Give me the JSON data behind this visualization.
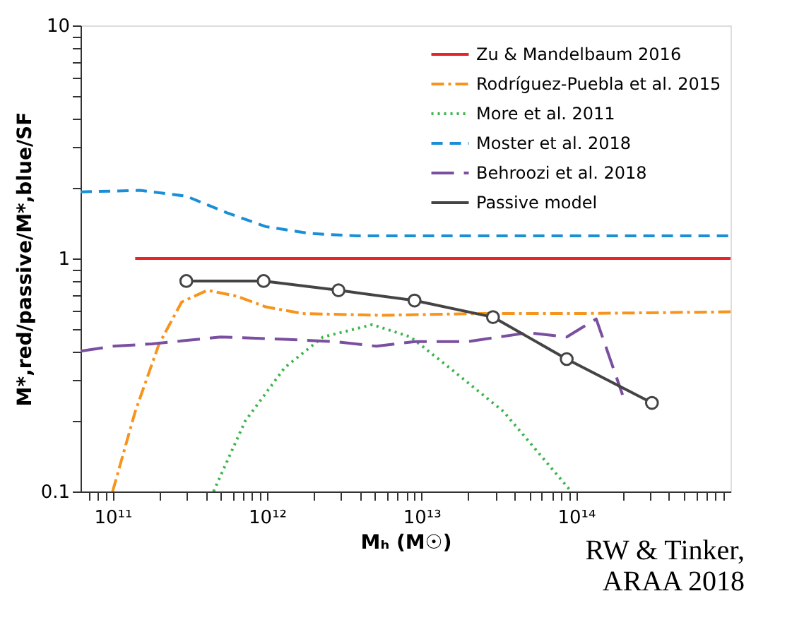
{
  "chart_data": {
    "type": "line",
    "xlabel": "Mₕ (M☉)",
    "ylabel": "M*,red/passive/M*,blue/SF",
    "log": "xy",
    "grid": false,
    "legend": "top right",
    "xlim": [
      62000000000.0,
      1000000000000000.0
    ],
    "ylim": [
      0.1,
      10
    ],
    "xticks": [
      {
        "value": 70000000000.0,
        "label": null
      },
      {
        "value": 80000000000.0,
        "label": null
      },
      {
        "value": 90000000000.0,
        "label": null
      },
      {
        "value": 100000000000.0,
        "label": "10¹¹"
      },
      {
        "value": 200000000000.0,
        "label": null
      },
      {
        "value": 300000000000.0,
        "label": null
      },
      {
        "value": 400000000000.0,
        "label": null
      },
      {
        "value": 500000000000.0,
        "label": null
      },
      {
        "value": 600000000000.0,
        "label": null
      },
      {
        "value": 700000000000.0,
        "label": null
      },
      {
        "value": 800000000000.0,
        "label": null
      },
      {
        "value": 900000000000.0,
        "label": null
      },
      {
        "value": 1000000000000.0,
        "label": "10¹²"
      },
      {
        "value": 2000000000000.0,
        "label": null
      },
      {
        "value": 3000000000000.0,
        "label": null
      },
      {
        "value": 4000000000000.0,
        "label": null
      },
      {
        "value": 5000000000000.0,
        "label": null
      },
      {
        "value": 6000000000000.0,
        "label": null
      },
      {
        "value": 7000000000000.0,
        "label": null
      },
      {
        "value": 8000000000000.0,
        "label": null
      },
      {
        "value": 9000000000000.0,
        "label": null
      },
      {
        "value": 10000000000000.0,
        "label": "10¹³"
      },
      {
        "value": 20000000000000.0,
        "label": null
      },
      {
        "value": 30000000000000.0,
        "label": null
      },
      {
        "value": 40000000000000.0,
        "label": null
      },
      {
        "value": 50000000000000.0,
        "label": null
      },
      {
        "value": 60000000000000.0,
        "label": null
      },
      {
        "value": 70000000000000.0,
        "label": null
      },
      {
        "value": 80000000000000.0,
        "label": null
      },
      {
        "value": 90000000000000.0,
        "label": null
      },
      {
        "value": 100000000000000.0,
        "label": "10¹⁴"
      },
      {
        "value": 200000000000000.0,
        "label": null
      },
      {
        "value": 300000000000000.0,
        "label": null
      },
      {
        "value": 400000000000000.0,
        "label": null
      },
      {
        "value": 500000000000000.0,
        "label": null
      },
      {
        "value": 600000000000000.0,
        "label": null
      },
      {
        "value": 700000000000000.0,
        "label": null
      },
      {
        "value": 800000000000000.0,
        "label": null
      },
      {
        "value": 900000000000000.0,
        "label": null
      }
    ],
    "yticks": [
      0.1,
      {
        "value": 0.2,
        "label": null
      },
      {
        "value": 0.3,
        "label": null
      },
      {
        "value": 0.4,
        "label": null
      },
      {
        "value": 0.5,
        "label": null
      },
      {
        "value": 0.6,
        "label": null
      },
      {
        "value": 0.7,
        "label": null
      },
      {
        "value": 0.8,
        "label": null
      },
      {
        "value": 0.9,
        "label": null
      },
      1,
      {
        "value": 2,
        "label": null
      },
      {
        "value": 3,
        "label": null
      },
      {
        "value": 4,
        "label": null
      },
      {
        "value": 5,
        "label": null
      },
      {
        "value": 6,
        "label": null
      },
      {
        "value": 7,
        "label": null
      },
      {
        "value": 8,
        "label": null
      },
      {
        "value": 9,
        "label": null
      },
      10
    ],
    "series": [
      {
        "name": "Zu & Mandelbaum 2016",
        "color": "#e8232a",
        "line_style": "solid",
        "marker": "none",
        "x": [
          140000000000.0,
          1000000000000000.0
        ],
        "values": [
          1,
          1
        ]
      },
      {
        "name": "Rodríguez-Puebla et al. 2015",
        "color": "#f7941d",
        "line_style": "dashdot",
        "marker": "none",
        "x": [
          100000000000.0,
          140000000000.0,
          200000000000.0,
          280000000000.0,
          410000000000.0,
          630000000000.0,
          980000000000.0,
          1700000000000.0,
          5500000000000.0,
          23000000000000.0,
          100000000000000.0,
          1000000000000000.0
        ],
        "values": [
          0.1,
          0.22,
          0.43,
          0.65,
          0.73,
          0.69,
          0.62,
          0.58,
          0.57,
          0.58,
          0.58,
          0.59
        ]
      },
      {
        "name": "More et al. 2011",
        "color": "#3cb54a",
        "line_style": "dotted",
        "marker": "none",
        "x": [
          450000000000.0,
          720000000000.0,
          1300000000000.0,
          2300000000000.0,
          4800000000000.0,
          8500000000000.0,
          16000000000000.0,
          34000000000000.0,
          93000000000000.0
        ],
        "values": [
          0.1,
          0.2,
          0.34,
          0.46,
          0.52,
          0.46,
          0.33,
          0.22,
          0.1
        ]
      },
      {
        "name": "Moster et al. 2018",
        "color": "#1a8fd6",
        "line_style": "dashed",
        "marker": "none",
        "x": [
          62000000000.0,
          150000000000.0,
          300000000000.0,
          550000000000.0,
          980000000000.0,
          1900000000000.0,
          3800000000000.0,
          1000000000000000.0
        ],
        "values": [
          1.93,
          1.96,
          1.85,
          1.57,
          1.37,
          1.28,
          1.25,
          1.25
        ]
      },
      {
        "name": "Behroozi et al. 2018",
        "color": "#7a4fa0",
        "line_style": "longdash",
        "marker": "none",
        "x": [
          62000000000.0,
          100000000000.0,
          180000000000.0,
          500000000000.0,
          1300000000000.0,
          2700000000000.0,
          5100000000000.0,
          9100000000000.0,
          20000000000000.0,
          49000000000000.0,
          87000000000000.0,
          135000000000000.0,
          200000000000000.0
        ],
        "values": [
          0.4,
          0.42,
          0.43,
          0.46,
          0.45,
          0.44,
          0.42,
          0.44,
          0.44,
          0.48,
          0.46,
          0.55,
          0.26
        ]
      },
      {
        "name": "Passive model",
        "color": "#444444",
        "line_style": "solid",
        "marker": "circle",
        "x": [
          300000000000.0,
          950000000000.0,
          2900000000000.0,
          9000000000000.0,
          29000000000000.0,
          87000000000000.0,
          310000000000000.0
        ],
        "values": [
          0.8,
          0.8,
          0.73,
          0.66,
          0.56,
          0.37,
          0.24
        ]
      }
    ],
    "annotations": [
      "RW & Tinker,",
      "ARAA 2018"
    ]
  }
}
